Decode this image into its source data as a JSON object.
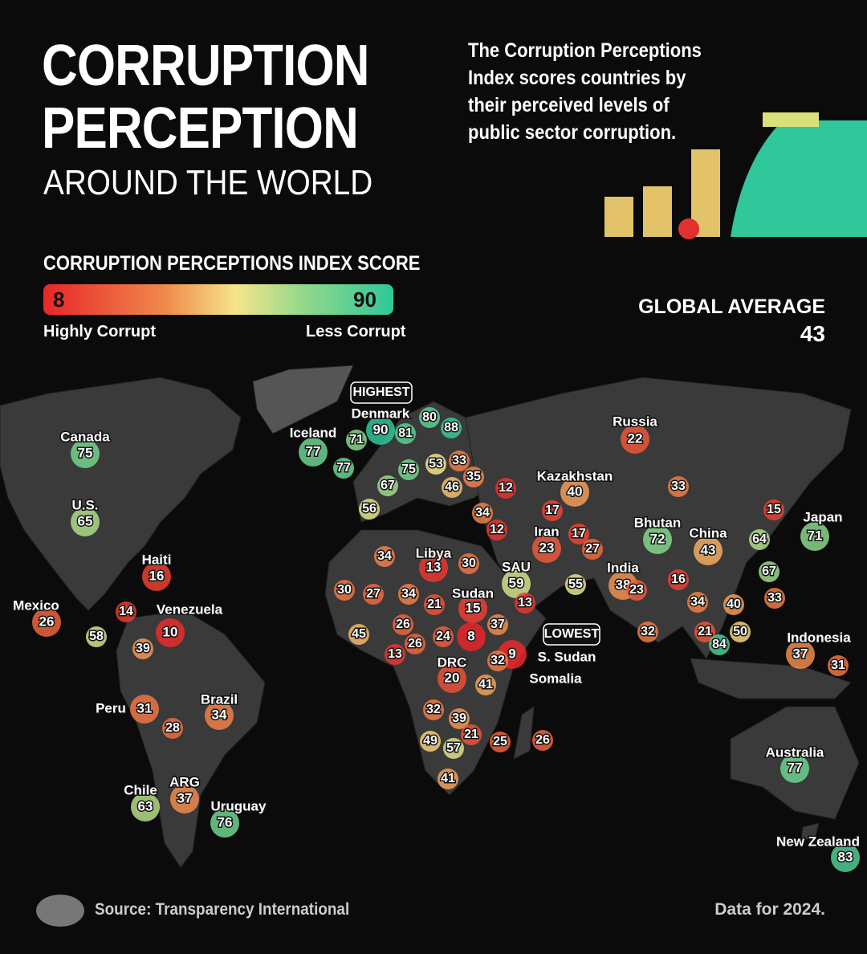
{
  "header": {
    "title_lines": [
      "CORRUPTION",
      "PERCEPTION"
    ],
    "subtitle": "AROUND THE WORLD",
    "description": "The Corruption Perceptions Index scores countries by their perceived levels of public sector corruption."
  },
  "legend": {
    "title": "CORRUPTION PERCEPTIONS INDEX SCORE",
    "min": 8,
    "max": 90,
    "min_label": "Highly Corrupt",
    "max_label": "Less Corrupt"
  },
  "global_average": {
    "label": "GLOBAL AVERAGE",
    "value": 43
  },
  "highlights": {
    "highest": "HIGHEST",
    "lowest": "LOWEST"
  },
  "map": {
    "countries": [
      {
        "name": "Canada",
        "value": 75
      },
      {
        "name": "U.S.",
        "value": 65
      },
      {
        "name": "Mexico",
        "value": 26
      },
      {
        "name": "Haiti",
        "value": 16
      },
      {
        "name": "Venezuela",
        "value": 10
      },
      {
        "name": "Peru",
        "value": 31
      },
      {
        "name": "Brazil",
        "value": 34
      },
      {
        "name": "Chile",
        "value": 63
      },
      {
        "name": "ARG",
        "value": 37
      },
      {
        "name": "Uruguay",
        "value": 76
      },
      {
        "name": "Iceland",
        "value": 77
      },
      {
        "name": "Denmark",
        "value": 90
      },
      {
        "name": "Russia",
        "value": 22
      },
      {
        "name": "Kazakhstan",
        "value": 40
      },
      {
        "name": "Libya",
        "value": 13
      },
      {
        "name": "Sudan",
        "value": 15
      },
      {
        "name": "SAU",
        "value": 59
      },
      {
        "name": "Iran",
        "value": 23
      },
      {
        "name": "India",
        "value": 38
      },
      {
        "name": "Bhutan",
        "value": 72
      },
      {
        "name": "China",
        "value": 43
      },
      {
        "name": "Japan",
        "value": 71
      },
      {
        "name": "DRC",
        "value": 20
      },
      {
        "name": "S. Sudan",
        "value": 8
      },
      {
        "name": "Somalia",
        "value": 9
      },
      {
        "name": "Indonesia",
        "value": 37
      },
      {
        "name": "Australia",
        "value": 77
      },
      {
        "name": "New Zealand",
        "value": 83
      }
    ],
    "unlabeled_values": [
      71,
      77,
      80,
      81,
      88,
      75,
      53,
      33,
      67,
      46,
      35,
      12,
      56,
      34,
      17,
      12,
      17,
      27,
      33,
      15,
      64,
      34,
      30,
      55,
      16,
      23,
      34,
      33,
      40,
      67,
      30,
      27,
      34,
      21,
      13,
      14,
      58,
      39,
      45,
      26,
      24,
      37,
      26,
      13,
      32,
      41,
      32,
      21,
      50,
      84,
      31,
      32,
      39,
      21,
      49,
      57,
      25,
      26,
      41,
      28
    ]
  },
  "footer": {
    "source": "Source: Transparency International",
    "note": "Data for 2024."
  }
}
